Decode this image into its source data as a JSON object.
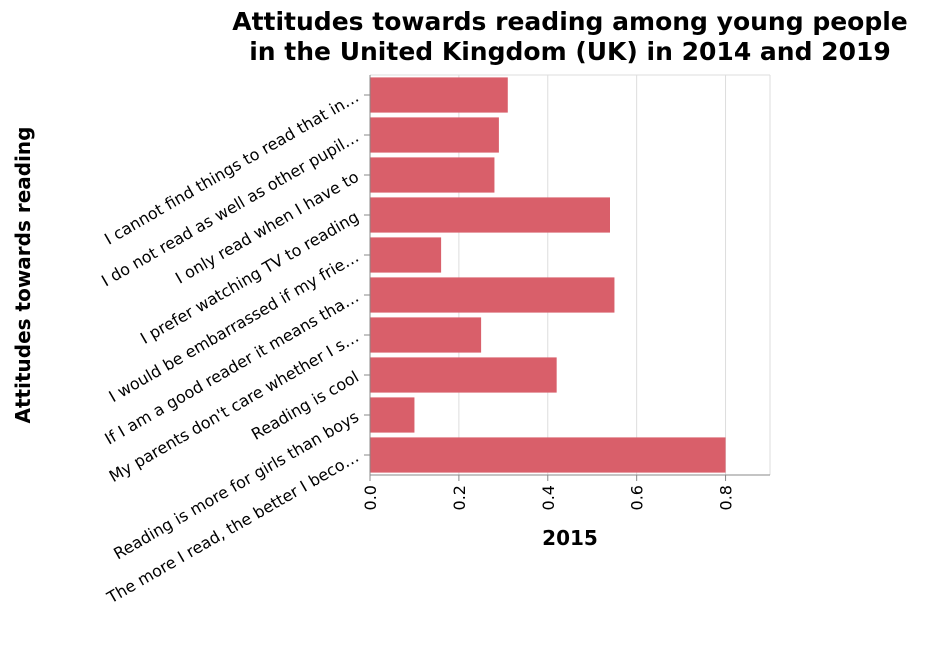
{
  "chart_data": {
    "type": "bar",
    "orientation": "horizontal",
    "title_lines": [
      "Attitudes towards reading among young people",
      "in the United Kingdom (UK) in 2014 and 2019"
    ],
    "xlabel": "2015",
    "ylabel": "Attitudes towards reading",
    "xlim": [
      0,
      0.9
    ],
    "x_ticks": [
      "0.0",
      "0.2",
      "0.4",
      "0.6",
      "0.8"
    ],
    "x_tick_values": [
      0,
      0.2,
      0.4,
      0.6,
      0.8
    ],
    "grid": "vertical",
    "bar_color": "#d95f6a",
    "categories": [
      "I cannot find things to read that in…",
      "I do not read as well as other pupil…",
      "I only read when I have to",
      "I prefer watching TV to reading",
      "I would be embarrassed if my frie…",
      "If I am a good reader it means tha…",
      "My parents don't care whether I s…",
      "Reading is cool",
      "Reading is more for girls than boys",
      "The more I read, the better I beco…"
    ],
    "values": [
      0.31,
      0.29,
      0.28,
      0.54,
      0.16,
      0.55,
      0.25,
      0.42,
      0.1,
      0.8
    ]
  }
}
